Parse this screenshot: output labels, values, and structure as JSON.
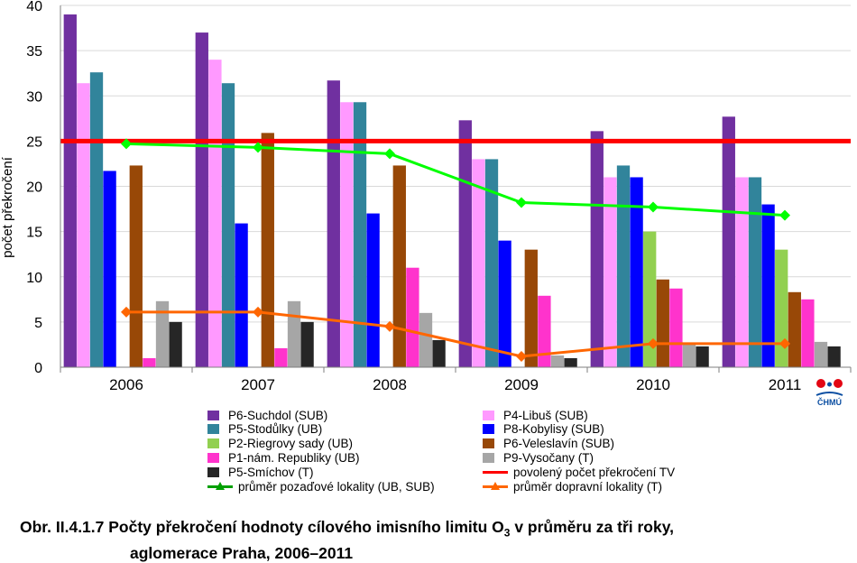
{
  "chart_data": {
    "type": "bar",
    "ylabel": "počet překročení",
    "xlabel": "",
    "ylim": [
      0,
      40
    ],
    "yticks": [
      0,
      5,
      10,
      15,
      20,
      25,
      30,
      35,
      40
    ],
    "categories": [
      "2006",
      "2007",
      "2008",
      "2009",
      "2010",
      "2011"
    ],
    "series": [
      {
        "name": "P6-Suchdol (SUB)",
        "color": "#7030a0",
        "values": [
          39,
          37,
          31.7,
          27.3,
          26.1,
          27.7
        ]
      },
      {
        "name": "P4-Libuš (SUB)",
        "color": "#ff99ff",
        "values": [
          31.4,
          34,
          29.3,
          23,
          21,
          21
        ]
      },
      {
        "name": "P5-Stodůlky (UB)",
        "color": "#31849b",
        "values": [
          32.6,
          31.4,
          29.3,
          23,
          22.3,
          21
        ]
      },
      {
        "name": "P8-Kobylisy (SUB)",
        "color": "#0000ff",
        "values": [
          21.7,
          15.9,
          17,
          14,
          21,
          18
        ]
      },
      {
        "name": "P2-Riegrovy sady (UB)",
        "color": "#92d050",
        "values": [
          null,
          null,
          null,
          null,
          15,
          13
        ]
      },
      {
        "name": "P6-Veleslavín (SUB)",
        "color": "#984807",
        "values": [
          22.3,
          25.9,
          22.3,
          13,
          9.7,
          8.3
        ]
      },
      {
        "name": "P1-nám. Republiky (UB)",
        "color": "#ff33cc",
        "values": [
          1,
          2.1,
          11,
          7.9,
          8.7,
          7.5
        ]
      },
      {
        "name": "P9-Vysočany (T)",
        "color": "#a6a6a6",
        "values": [
          7.3,
          7.3,
          6,
          1.3,
          2.7,
          2.8
        ]
      },
      {
        "name": "P5-Smíchov (T)",
        "color": "#262626",
        "values": [
          5,
          5,
          3,
          1,
          2.3,
          2.3
        ]
      }
    ],
    "lines": [
      {
        "name": "povolený počet překročení TV",
        "color": "#ff0000",
        "values": [
          25,
          25,
          25,
          25,
          25,
          25
        ]
      },
      {
        "name": "průměr pozaďové lokality (UB, SUB)",
        "color": "#00ff00",
        "marker": "diamond",
        "values": [
          24.7,
          24.3,
          23.6,
          18.2,
          17.7,
          16.8
        ]
      },
      {
        "name": "průměr dopravní lokality (T)",
        "color": "#ff6600",
        "marker": "diamond",
        "values": [
          6.1,
          6.1,
          4.5,
          1.2,
          2.6,
          2.6
        ]
      }
    ],
    "grid": true,
    "legend_position": "bottom"
  },
  "legend": {
    "left": [
      {
        "label": "P6-Suchdol (SUB)",
        "color": "#7030a0",
        "kind": "box"
      },
      {
        "label": "P5-Stodůlky (UB)",
        "color": "#31849b",
        "kind": "box"
      },
      {
        "label": "P2-Riegrovy sady (UB)",
        "color": "#92d050",
        "kind": "box"
      },
      {
        "label": "P1-nám. Republiky (UB)",
        "color": "#ff33cc",
        "kind": "box"
      },
      {
        "label": "P5-Smíchov (T)",
        "color": "#262626",
        "kind": "box"
      },
      {
        "label": "průměr pozaďové lokality (UB, SUB)",
        "color": "#00a000",
        "kind": "line-triangle"
      }
    ],
    "right": [
      {
        "label": "P4-Libuš (SUB)",
        "color": "#ff99ff",
        "kind": "box"
      },
      {
        "label": "P8-Kobylisy (SUB)",
        "color": "#0000ff",
        "kind": "box"
      },
      {
        "label": "P6-Veleslavín (SUB)",
        "color": "#984807",
        "kind": "box"
      },
      {
        "label": "P9-Vysočany (T)",
        "color": "#a6a6a6",
        "kind": "box"
      },
      {
        "label": "povolený počet překročení TV",
        "color": "#ff0000",
        "kind": "line"
      },
      {
        "label": "průměr dopravní lokality (T)",
        "color": "#ff6600",
        "kind": "line-triangle"
      }
    ]
  },
  "caption": {
    "line1_prefix": "Obr. II.4.1.7  Počty překročení hodnoty cílového imisního limitu O",
    "line1_sub": "3",
    "line1_suffix": " v průměru za tři roky,",
    "line2": "aglomerace Praha, 2006–2011"
  },
  "logo": {
    "text": "ČHMÚ",
    "color_red": "#e30613",
    "color_blue": "#0b4ea2"
  }
}
